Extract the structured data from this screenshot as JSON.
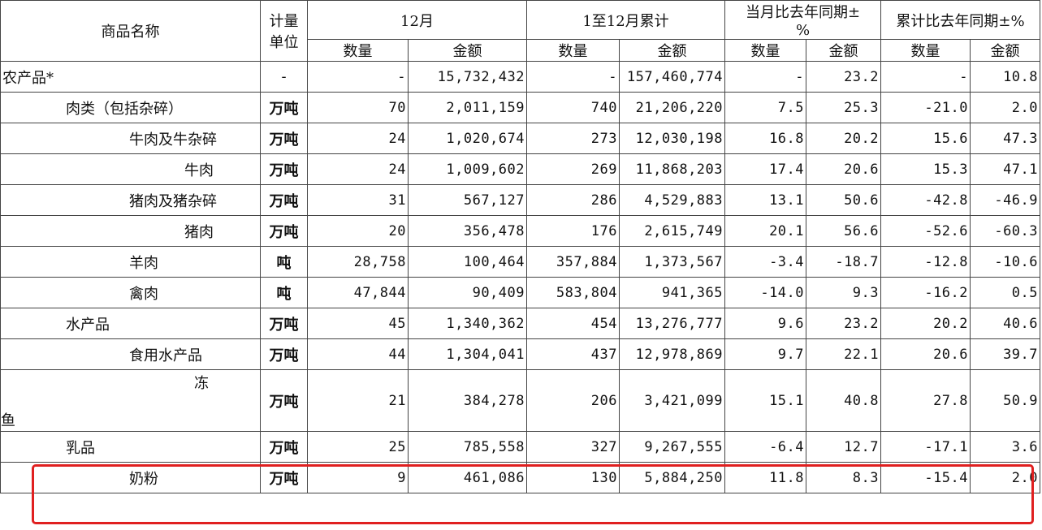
{
  "header": {
    "name": "商品名称",
    "unit_line1": "计量",
    "unit_line2": "单位",
    "month": "12月",
    "ytd": "1至12月累计",
    "mom_line1": "当月比去年同期±",
    "mom_line2": "%",
    "ytd_chg": "累计比去年同期±%",
    "qty": "数量",
    "amt": "金额"
  },
  "rows": [
    {
      "name": "农产品*",
      "unit": "-",
      "m_qty": "-",
      "m_amt": "15,732,432",
      "y_qty": "-",
      "y_amt": "157,460,774",
      "mc_qty": "-",
      "mc_amt": "23.2",
      "yc_qty": "-",
      "yc_amt": "10.8"
    },
    {
      "name": "肉类（包括杂碎）",
      "unit": "万吨",
      "m_qty": "70",
      "m_amt": "2,011,159",
      "y_qty": "740",
      "y_amt": "21,206,220",
      "mc_qty": "7.5",
      "mc_amt": "25.3",
      "yc_qty": "-21.0",
      "yc_amt": "2.0"
    },
    {
      "name": "牛肉及牛杂碎",
      "unit": "万吨",
      "m_qty": "24",
      "m_amt": "1,020,674",
      "y_qty": "273",
      "y_amt": "12,030,198",
      "mc_qty": "16.8",
      "mc_amt": "20.2",
      "yc_qty": "15.6",
      "yc_amt": "47.3"
    },
    {
      "name": "牛肉",
      "unit": "万吨",
      "m_qty": "24",
      "m_amt": "1,009,602",
      "y_qty": "269",
      "y_amt": "11,868,203",
      "mc_qty": "17.4",
      "mc_amt": "20.6",
      "yc_qty": "15.3",
      "yc_amt": "47.1"
    },
    {
      "name": "猪肉及猪杂碎",
      "unit": "万吨",
      "m_qty": "31",
      "m_amt": "567,127",
      "y_qty": "286",
      "y_amt": "4,529,883",
      "mc_qty": "13.1",
      "mc_amt": "50.6",
      "yc_qty": "-42.8",
      "yc_amt": "-46.9"
    },
    {
      "name": "猪肉",
      "unit": "万吨",
      "m_qty": "20",
      "m_amt": "356,478",
      "y_qty": "176",
      "y_amt": "2,615,749",
      "mc_qty": "20.1",
      "mc_amt": "56.6",
      "yc_qty": "-52.6",
      "yc_amt": "-60.3"
    },
    {
      "name": "羊肉",
      "unit": "吨",
      "m_qty": "28,758",
      "m_amt": "100,464",
      "y_qty": "357,884",
      "y_amt": "1,373,567",
      "mc_qty": "-3.4",
      "mc_amt": "-18.7",
      "yc_qty": "-12.8",
      "yc_amt": "-10.6"
    },
    {
      "name": "禽肉",
      "unit": "吨",
      "m_qty": "47,844",
      "m_amt": "90,409",
      "y_qty": "583,804",
      "y_amt": "941,365",
      "mc_qty": "-14.0",
      "mc_amt": "9.3",
      "yc_qty": "-16.2",
      "yc_amt": "0.5"
    },
    {
      "name": "水产品",
      "unit": "万吨",
      "m_qty": "45",
      "m_amt": "1,340,362",
      "y_qty": "454",
      "y_amt": "13,276,777",
      "mc_qty": "9.6",
      "mc_amt": "23.2",
      "yc_qty": "20.2",
      "yc_amt": "40.6"
    },
    {
      "name": "食用水产品",
      "unit": "万吨",
      "m_qty": "44",
      "m_amt": "1,304,041",
      "y_qty": "437",
      "y_amt": "12,978,869",
      "mc_qty": "9.7",
      "mc_amt": "22.1",
      "yc_qty": "20.6",
      "yc_amt": "39.7"
    },
    {
      "name_top": "冻",
      "name_bot": "鱼",
      "unit": "万吨",
      "m_qty": "21",
      "m_amt": "384,278",
      "y_qty": "206",
      "y_amt": "3,421,099",
      "mc_qty": "15.1",
      "mc_amt": "40.8",
      "yc_qty": "27.8",
      "yc_amt": "50.9"
    },
    {
      "name": "乳品",
      "unit": "万吨",
      "m_qty": "25",
      "m_amt": "785,558",
      "y_qty": "327",
      "y_amt": "9,267,555",
      "mc_qty": "-6.4",
      "mc_amt": "12.7",
      "yc_qty": "-17.1",
      "yc_amt": "3.6"
    },
    {
      "name": "奶粉",
      "unit": "万吨",
      "m_qty": "9",
      "m_amt": "461,086",
      "y_qty": "130",
      "y_amt": "5,884,250",
      "mc_qty": "11.8",
      "mc_amt": "8.3",
      "yc_qty": "-15.4",
      "yc_amt": "2.0"
    }
  ],
  "highlight_color": "#e02020"
}
